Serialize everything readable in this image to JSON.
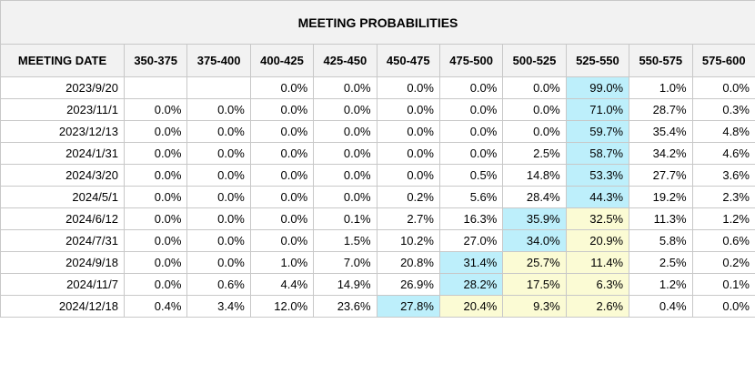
{
  "title": "MEETING PROBABILITIES",
  "colors": {
    "header_bg": "#f2f2f2",
    "highlight_max": "#bdeffb",
    "highlight_second": "#fbfbd4",
    "border": "#c8c8c8"
  },
  "columns": [
    "MEETING DATE",
    "350-375",
    "375-400",
    "400-425",
    "425-450",
    "450-475",
    "475-500",
    "500-525",
    "525-550",
    "550-575",
    "575-600"
  ],
  "rows": [
    {
      "date": "2023/9/20",
      "values": [
        "",
        "",
        "0.0%",
        "0.0%",
        "0.0%",
        "0.0%",
        "0.0%",
        "99.0%",
        "1.0%",
        "0.0%"
      ],
      "blue": [
        7
      ],
      "yellow": []
    },
    {
      "date": "2023/11/1",
      "values": [
        "0.0%",
        "0.0%",
        "0.0%",
        "0.0%",
        "0.0%",
        "0.0%",
        "0.0%",
        "71.0%",
        "28.7%",
        "0.3%"
      ],
      "blue": [
        7
      ],
      "yellow": []
    },
    {
      "date": "2023/12/13",
      "values": [
        "0.0%",
        "0.0%",
        "0.0%",
        "0.0%",
        "0.0%",
        "0.0%",
        "0.0%",
        "59.7%",
        "35.4%",
        "4.8%"
      ],
      "blue": [
        7
      ],
      "yellow": []
    },
    {
      "date": "2024/1/31",
      "values": [
        "0.0%",
        "0.0%",
        "0.0%",
        "0.0%",
        "0.0%",
        "0.0%",
        "2.5%",
        "58.7%",
        "34.2%",
        "4.6%"
      ],
      "blue": [
        7
      ],
      "yellow": []
    },
    {
      "date": "2024/3/20",
      "values": [
        "0.0%",
        "0.0%",
        "0.0%",
        "0.0%",
        "0.0%",
        "0.5%",
        "14.8%",
        "53.3%",
        "27.7%",
        "3.6%"
      ],
      "blue": [
        7
      ],
      "yellow": []
    },
    {
      "date": "2024/5/1",
      "values": [
        "0.0%",
        "0.0%",
        "0.0%",
        "0.0%",
        "0.2%",
        "5.6%",
        "28.4%",
        "44.3%",
        "19.2%",
        "2.3%"
      ],
      "blue": [
        7
      ],
      "yellow": []
    },
    {
      "date": "2024/6/12",
      "values": [
        "0.0%",
        "0.0%",
        "0.0%",
        "0.1%",
        "2.7%",
        "16.3%",
        "35.9%",
        "32.5%",
        "11.3%",
        "1.2%"
      ],
      "blue": [
        6
      ],
      "yellow": [
        7
      ]
    },
    {
      "date": "2024/7/31",
      "values": [
        "0.0%",
        "0.0%",
        "0.0%",
        "1.5%",
        "10.2%",
        "27.0%",
        "34.0%",
        "20.9%",
        "5.8%",
        "0.6%"
      ],
      "blue": [
        6
      ],
      "yellow": [
        7
      ]
    },
    {
      "date": "2024/9/18",
      "values": [
        "0.0%",
        "0.0%",
        "1.0%",
        "7.0%",
        "20.8%",
        "31.4%",
        "25.7%",
        "11.4%",
        "2.5%",
        "0.2%"
      ],
      "blue": [
        5
      ],
      "yellow": [
        6,
        7
      ]
    },
    {
      "date": "2024/11/7",
      "values": [
        "0.0%",
        "0.6%",
        "4.4%",
        "14.9%",
        "26.9%",
        "28.2%",
        "17.5%",
        "6.3%",
        "1.2%",
        "0.1%"
      ],
      "blue": [
        5
      ],
      "yellow": [
        6,
        7
      ]
    },
    {
      "date": "2024/12/18",
      "values": [
        "0.4%",
        "3.4%",
        "12.0%",
        "23.6%",
        "27.8%",
        "20.4%",
        "9.3%",
        "2.6%",
        "0.4%",
        "0.0%"
      ],
      "blue": [
        4
      ],
      "yellow": [
        5,
        6,
        7
      ]
    }
  ]
}
